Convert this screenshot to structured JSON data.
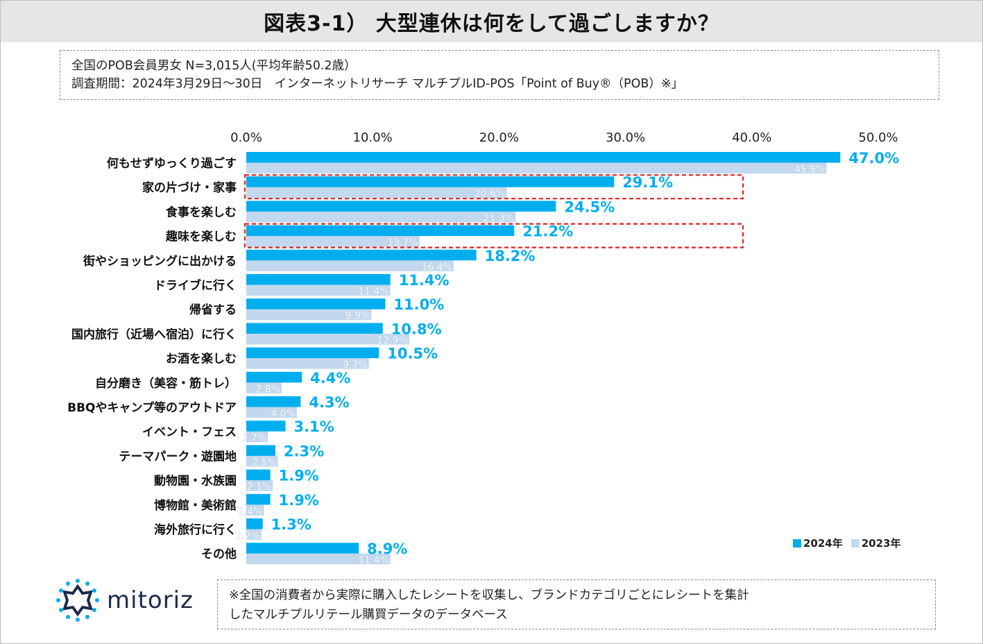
{
  "title": "図表3-1） 大型連休は何をして過ごしますか？",
  "info": {
    "line1": "全国のPOB会員男女 N=3,015人(平均年齢50.2歳）",
    "line2": "調査期間：2024年3月29日～30日　インターネットリサーチ マルチプルID-POS「Point of Buy®（POB）※」"
  },
  "chart_data": {
    "type": "bar",
    "orientation": "horizontal",
    "xlim": [
      0,
      50
    ],
    "ticks": [
      "0.0%",
      "10.0%",
      "20.0%",
      "30.0%",
      "40.0%",
      "50.0%"
    ],
    "tick_values": [
      0,
      10,
      20,
      30,
      40,
      50
    ],
    "categories": [
      "何もせずゆっくり過ごす",
      "家の片づけ・家事",
      "食事を楽しむ",
      "趣味を楽しむ",
      "街やショッピングに出かける",
      "ドライブに行く",
      "帰省する",
      "国内旅行（近場へ宿泊）に行く",
      "お酒を楽しむ",
      "自分磨き（美容・筋トレ）",
      "BBQやキャンプ等のアウトドア",
      "イベント・フェス",
      "テーマパーク・遊園地",
      "動物園・水族園",
      "博物館・美術館",
      "海外旅行に行く",
      "その他"
    ],
    "series": [
      {
        "name": "2024年",
        "color": "#00aeef",
        "values": [
          47.0,
          29.1,
          24.5,
          21.2,
          18.2,
          11.4,
          11.0,
          10.8,
          10.5,
          4.4,
          4.3,
          3.1,
          2.3,
          1.9,
          1.9,
          1.3,
          8.9
        ],
        "labels": [
          "47.0%",
          "29.1%",
          "24.5%",
          "21.2%",
          "18.2%",
          "11.4%",
          "11.0%",
          "10.8%",
          "10.5%",
          "4.4%",
          "4.3%",
          "3.1%",
          "2.3%",
          "1.9%",
          "1.9%",
          "1.3%",
          "8.9%"
        ]
      },
      {
        "name": "2023年",
        "color": "#c2d8ee",
        "values": [
          45.9,
          20.6,
          21.3,
          13.7,
          16.4,
          11.4,
          9.9,
          12.9,
          9.7,
          2.8,
          4.0,
          1.7,
          2.5,
          2.1,
          1.4,
          1.2,
          11.4
        ],
        "labels": [
          "45.9%",
          "20.6%",
          "21.3%",
          "13.7%",
          "16.4%",
          "11.4%",
          "9.9%",
          "12.9%",
          "9.7%",
          "2.8%",
          "4.0%",
          "1.7%",
          "2.5%",
          "2.1%",
          "1.4%",
          "1.2%",
          "11.4%"
        ]
      }
    ],
    "highlighted_categories": [
      "家の片づけ・家事",
      "趣味を楽しむ"
    ],
    "highlight_color": "#e02020",
    "legend": {
      "position": "bottom-right",
      "entries": [
        "2024年",
        "2023年"
      ]
    }
  },
  "logo": {
    "text": "mitoriz",
    "icon": "sunburst-logo-icon",
    "colors": [
      "#00aeef",
      "#1b2a49"
    ]
  },
  "note": {
    "line1": "※全国の消費者から実際に購入したレシートを収集し、ブランドカテゴリごとにレシートを集計",
    "line2": "したマルチプルリテール購買データのデータベース"
  }
}
